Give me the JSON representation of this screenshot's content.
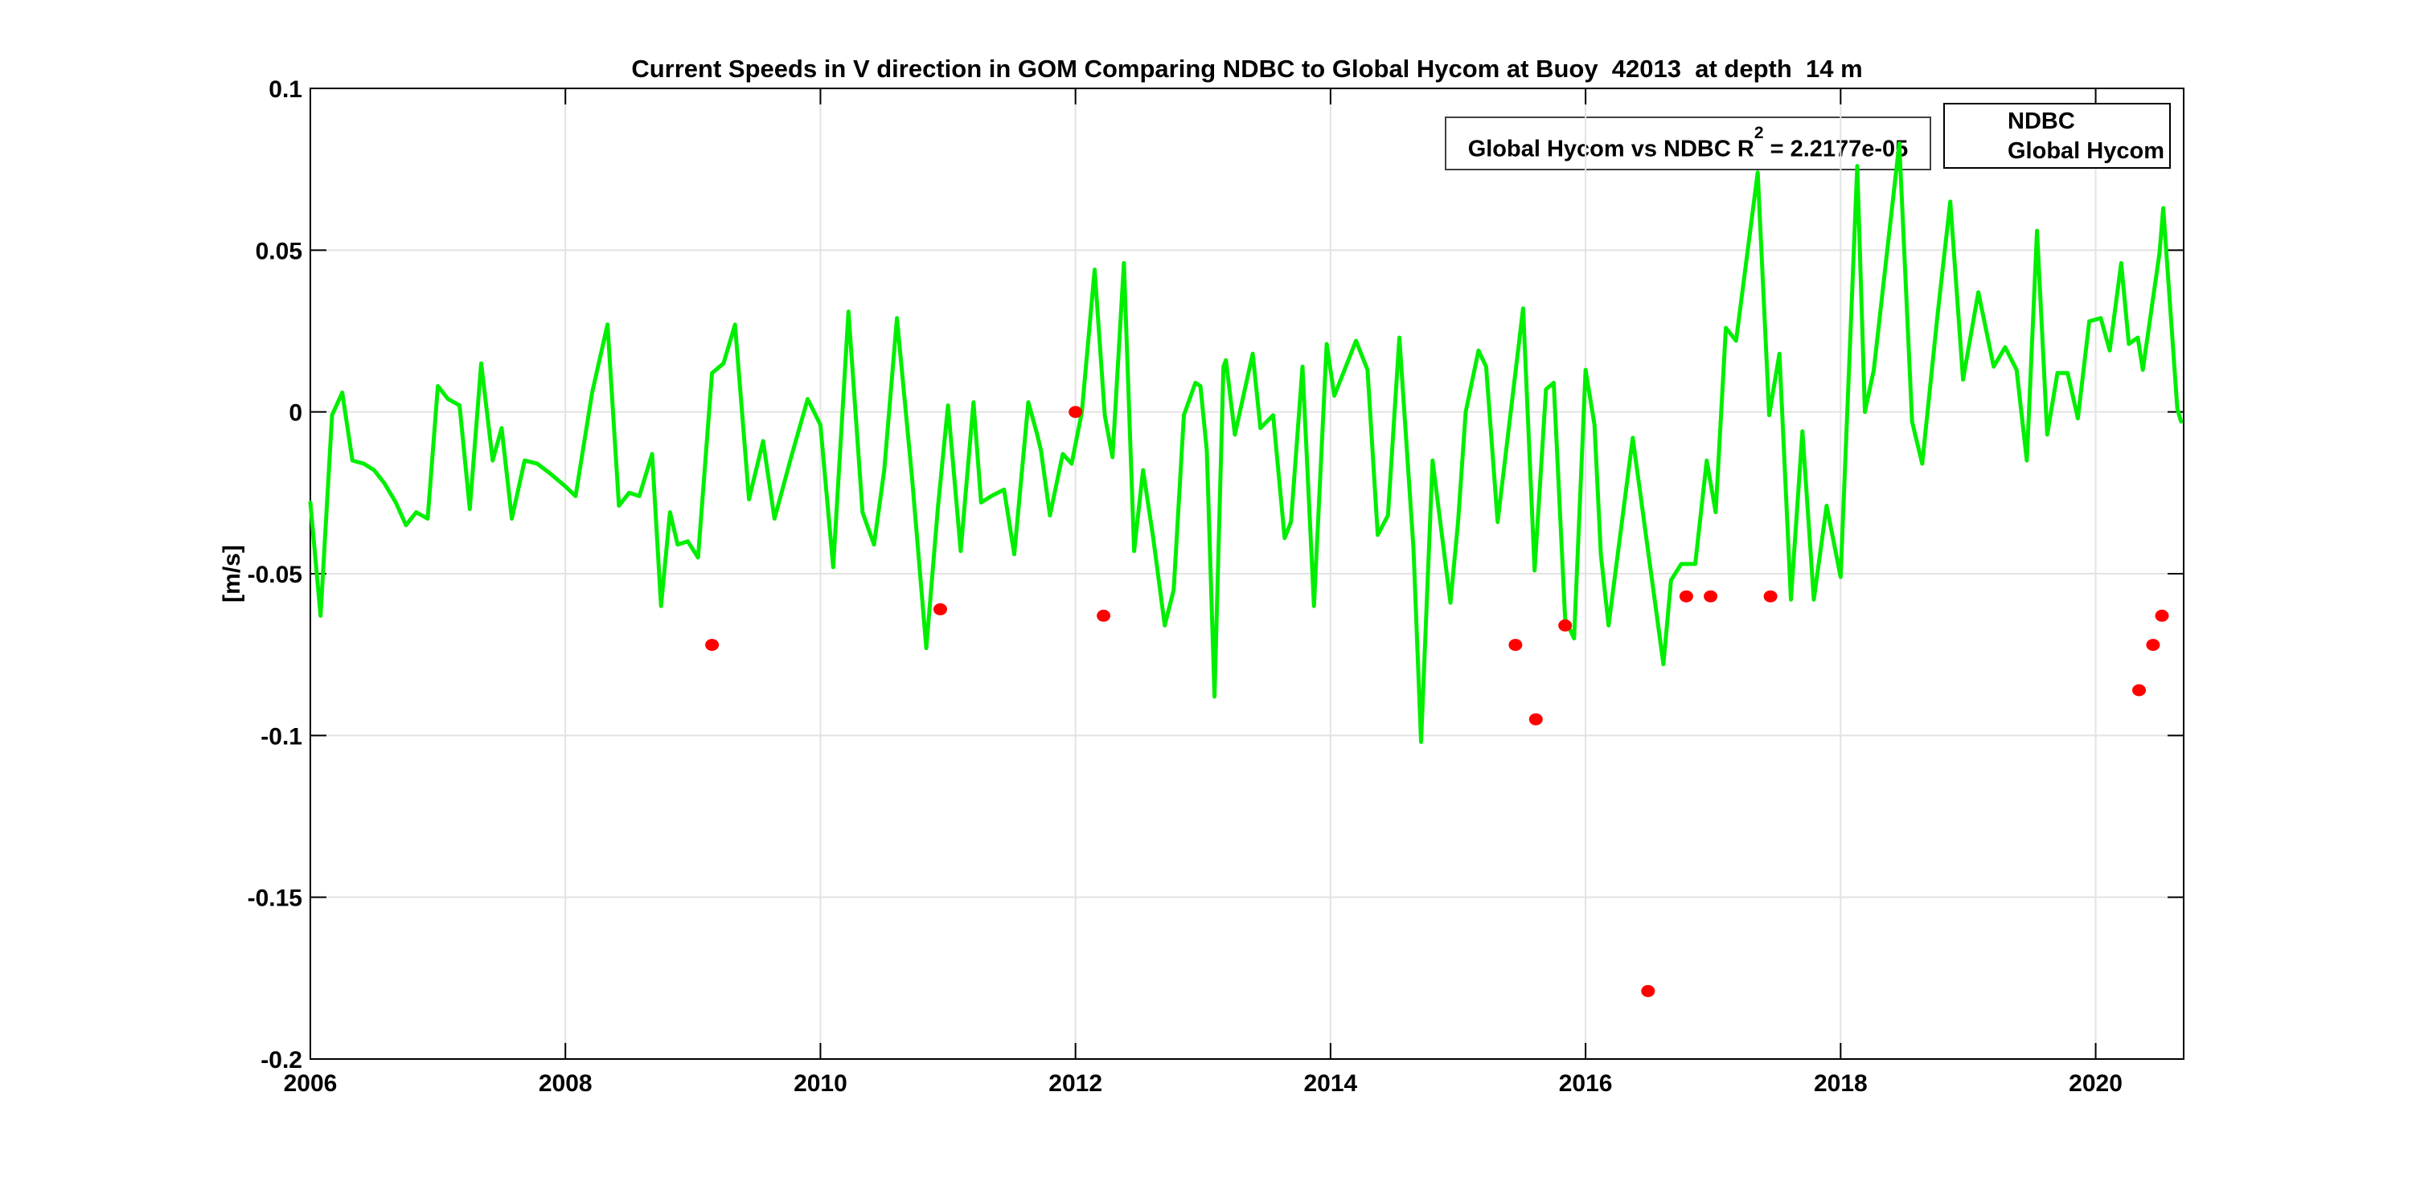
{
  "annotation": {
    "prefix": "Global Hycom vs NDBC R",
    "sup": "2",
    "suffix": " = 2.2177e-05"
  },
  "colors": {
    "ndbc": "#ff0000",
    "hycom": "#00ef00",
    "grid": "#e3e3e3",
    "axis": "#000000"
  },
  "chart_data": {
    "type": "line",
    "title": "Current Speeds in V direction in GOM Comparing NDBC to Global Hycom at Buoy  42013  at depth  14 m",
    "xlabel": "",
    "ylabel": "[m/s]",
    "xlim": [
      2006,
      2020.69
    ],
    "ylim": [
      -0.2,
      0.1
    ],
    "grid": true,
    "legend_position": "top-right",
    "xticks": {
      "values": [
        2006,
        2008,
        2010,
        2012,
        2014,
        2016,
        2018,
        2020
      ],
      "labels": [
        "2006",
        "2008",
        "2010",
        "2012",
        "2014",
        "2016",
        "2018",
        "2020"
      ]
    },
    "yticks": {
      "values": [
        0.1,
        0.05,
        0,
        -0.05,
        -0.1,
        -0.15,
        -0.2
      ],
      "labels": [
        "0.1",
        "0.05",
        "0",
        "-0.05",
        "-0.1",
        "-0.15",
        "-0.2"
      ]
    },
    "series": [
      {
        "name": "NDBC",
        "type": "scatter",
        "color": "#ff0000",
        "points": [
          [
            2009.15,
            -0.072
          ],
          [
            2010.94,
            -0.061
          ],
          [
            2012.0,
            0.0
          ],
          [
            2012.22,
            -0.063
          ],
          [
            2015.45,
            -0.072
          ],
          [
            2015.61,
            -0.095
          ],
          [
            2015.84,
            -0.066
          ],
          [
            2016.49,
            -0.179
          ],
          [
            2016.79,
            -0.057
          ],
          [
            2016.98,
            -0.057
          ],
          [
            2017.45,
            -0.057
          ],
          [
            2020.34,
            -0.086
          ],
          [
            2020.45,
            -0.072
          ],
          [
            2020.52,
            -0.063
          ]
        ]
      },
      {
        "name": "Global Hycom",
        "type": "line",
        "color": "#00ef00",
        "points": [
          [
            2006.0,
            -0.028
          ],
          [
            2006.08,
            -0.063
          ],
          [
            2006.17,
            -0.001
          ],
          [
            2006.25,
            0.006
          ],
          [
            2006.33,
            -0.015
          ],
          [
            2006.42,
            -0.016
          ],
          [
            2006.5,
            -0.018
          ],
          [
            2006.58,
            -0.022
          ],
          [
            2006.67,
            -0.028
          ],
          [
            2006.75,
            -0.035
          ],
          [
            2006.83,
            -0.031
          ],
          [
            2006.92,
            -0.033
          ],
          [
            2007.0,
            0.008
          ],
          [
            2007.08,
            0.004
          ],
          [
            2007.17,
            0.002
          ],
          [
            2007.25,
            -0.03
          ],
          [
            2007.34,
            0.015
          ],
          [
            2007.43,
            -0.015
          ],
          [
            2007.5,
            -0.005
          ],
          [
            2007.58,
            -0.033
          ],
          [
            2007.68,
            -0.015
          ],
          [
            2007.78,
            -0.016
          ],
          [
            2007.88,
            -0.019
          ],
          [
            2008.0,
            -0.023
          ],
          [
            2008.08,
            -0.026
          ],
          [
            2008.21,
            0.006
          ],
          [
            2008.33,
            0.027
          ],
          [
            2008.42,
            -0.029
          ],
          [
            2008.5,
            -0.025
          ],
          [
            2008.58,
            -0.026
          ],
          [
            2008.68,
            -0.013
          ],
          [
            2008.75,
            -0.06
          ],
          [
            2008.82,
            -0.031
          ],
          [
            2008.88,
            -0.041
          ],
          [
            2008.96,
            -0.04
          ],
          [
            2009.04,
            -0.045
          ],
          [
            2009.15,
            0.012
          ],
          [
            2009.24,
            0.015
          ],
          [
            2009.33,
            0.027
          ],
          [
            2009.44,
            -0.027
          ],
          [
            2009.55,
            -0.009
          ],
          [
            2009.64,
            -0.033
          ],
          [
            2009.77,
            -0.014
          ],
          [
            2009.9,
            0.004
          ],
          [
            2010.0,
            -0.004
          ],
          [
            2010.1,
            -0.048
          ],
          [
            2010.22,
            0.031
          ],
          [
            2010.33,
            -0.031
          ],
          [
            2010.42,
            -0.041
          ],
          [
            2010.5,
            -0.018
          ],
          [
            2010.6,
            0.029
          ],
          [
            2010.72,
            -0.021
          ],
          [
            2010.83,
            -0.073
          ],
          [
            2010.92,
            -0.03
          ],
          [
            2011.0,
            0.002
          ],
          [
            2011.1,
            -0.043
          ],
          [
            2011.2,
            0.003
          ],
          [
            2011.26,
            -0.028
          ],
          [
            2011.34,
            -0.026
          ],
          [
            2011.44,
            -0.024
          ],
          [
            2011.52,
            -0.044
          ],
          [
            2011.63,
            0.003
          ],
          [
            2011.7,
            -0.007
          ],
          [
            2011.73,
            -0.012
          ],
          [
            2011.8,
            -0.032
          ],
          [
            2011.9,
            -0.013
          ],
          [
            2011.97,
            -0.016
          ],
          [
            2012.05,
            0.0
          ],
          [
            2012.15,
            0.044
          ],
          [
            2012.23,
            -0.001
          ],
          [
            2012.29,
            -0.014
          ],
          [
            2012.38,
            0.046
          ],
          [
            2012.46,
            -0.043
          ],
          [
            2012.53,
            -0.018
          ],
          [
            2012.61,
            -0.039
          ],
          [
            2012.7,
            -0.066
          ],
          [
            2012.77,
            -0.055
          ],
          [
            2012.85,
            -0.001
          ],
          [
            2012.94,
            0.009
          ],
          [
            2012.98,
            0.008
          ],
          [
            2013.03,
            -0.012
          ],
          [
            2013.09,
            -0.088
          ],
          [
            2013.16,
            0.014
          ],
          [
            2013.18,
            0.016
          ],
          [
            2013.25,
            -0.007
          ],
          [
            2013.39,
            0.018
          ],
          [
            2013.45,
            -0.005
          ],
          [
            2013.55,
            -0.001
          ],
          [
            2013.64,
            -0.039
          ],
          [
            2013.69,
            -0.034
          ],
          [
            2013.78,
            0.014
          ],
          [
            2013.87,
            -0.06
          ],
          [
            2013.97,
            0.021
          ],
          [
            2014.03,
            0.005
          ],
          [
            2014.2,
            0.022
          ],
          [
            2014.29,
            0.013
          ],
          [
            2014.37,
            -0.038
          ],
          [
            2014.45,
            -0.032
          ],
          [
            2014.54,
            0.023
          ],
          [
            2014.65,
            -0.042
          ],
          [
            2014.71,
            -0.102
          ],
          [
            2014.8,
            -0.015
          ],
          [
            2014.94,
            -0.059
          ],
          [
            2015.0,
            -0.034
          ],
          [
            2015.06,
            0.0
          ],
          [
            2015.16,
            0.019
          ],
          [
            2015.22,
            0.014
          ],
          [
            2015.31,
            -0.034
          ],
          [
            2015.51,
            0.032
          ],
          [
            2015.6,
            -0.049
          ],
          [
            2015.69,
            0.007
          ],
          [
            2015.75,
            0.009
          ],
          [
            2015.84,
            -0.064
          ],
          [
            2015.91,
            -0.07
          ],
          [
            2016.0,
            0.013
          ],
          [
            2016.07,
            -0.004
          ],
          [
            2016.12,
            -0.044
          ],
          [
            2016.18,
            -0.066
          ],
          [
            2016.37,
            -0.008
          ],
          [
            2016.61,
            -0.078
          ],
          [
            2016.67,
            -0.052
          ],
          [
            2016.75,
            -0.047
          ],
          [
            2016.86,
            -0.047
          ],
          [
            2016.95,
            -0.015
          ],
          [
            2017.02,
            -0.031
          ],
          [
            2017.1,
            0.026
          ],
          [
            2017.18,
            0.022
          ],
          [
            2017.35,
            0.074
          ],
          [
            2017.44,
            -0.001
          ],
          [
            2017.52,
            0.018
          ],
          [
            2017.61,
            -0.058
          ],
          [
            2017.7,
            -0.006
          ],
          [
            2017.79,
            -0.058
          ],
          [
            2017.89,
            -0.029
          ],
          [
            2018.0,
            -0.051
          ],
          [
            2018.13,
            0.076
          ],
          [
            2018.19,
            0.0
          ],
          [
            2018.26,
            0.013
          ],
          [
            2018.46,
            0.083
          ],
          [
            2018.56,
            -0.003
          ],
          [
            2018.64,
            -0.016
          ],
          [
            2018.76,
            0.03
          ],
          [
            2018.86,
            0.065
          ],
          [
            2018.96,
            0.01
          ],
          [
            2019.08,
            0.037
          ],
          [
            2019.2,
            0.014
          ],
          [
            2019.29,
            0.02
          ],
          [
            2019.38,
            0.013
          ],
          [
            2019.46,
            -0.015
          ],
          [
            2019.54,
            0.056
          ],
          [
            2019.62,
            -0.007
          ],
          [
            2019.7,
            0.012
          ],
          [
            2019.78,
            0.012
          ],
          [
            2019.86,
            -0.002
          ],
          [
            2019.95,
            0.028
          ],
          [
            2020.04,
            0.029
          ],
          [
            2020.11,
            0.019
          ],
          [
            2020.2,
            0.046
          ],
          [
            2020.26,
            0.021
          ],
          [
            2020.33,
            0.023
          ],
          [
            2020.37,
            0.013
          ],
          [
            2020.5,
            0.049
          ],
          [
            2020.53,
            0.063
          ],
          [
            2020.64,
            0.001
          ],
          [
            2020.67,
            -0.003
          ]
        ]
      }
    ]
  }
}
